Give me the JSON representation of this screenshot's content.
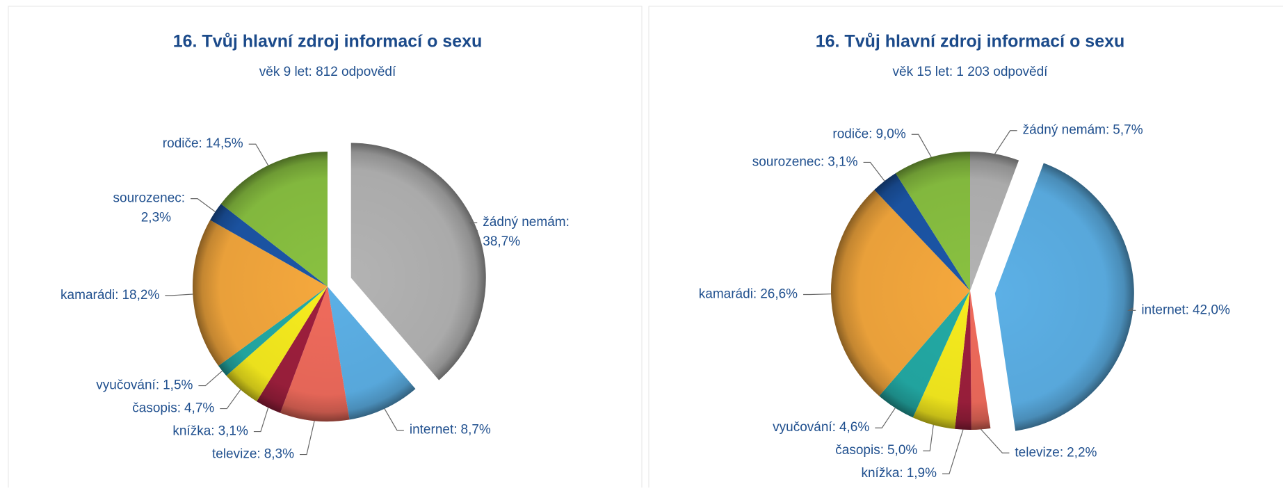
{
  "chart_data": [
    {
      "type": "pie",
      "title": "16. Tvůj hlavní zdroj informací o sexu",
      "subtitle": "věk 9 let: 812 odpovědí",
      "categories": [
        "žádný nemám:",
        "internet:",
        "televize:",
        "knížka:",
        "časopis:",
        "vyučování:",
        "kamarádi:",
        "sourozenec:",
        "rodiče:"
      ],
      "values": [
        38.7,
        8.7,
        8.3,
        3.1,
        4.7,
        1.5,
        18.2,
        2.3,
        14.5
      ],
      "value_labels": [
        "38,7%",
        "8,7%",
        "8,3%",
        "3,1%",
        "4,7%",
        "1,5%",
        "18,2%",
        "2,3%",
        "14,5%"
      ],
      "colors": [
        "#b3b3b3",
        "#5cb0e6",
        "#f06b5c",
        "#9e1f3d",
        "#f7ec1e",
        "#23aba6",
        "#f5a83d",
        "#1c56a7",
        "#89c141"
      ],
      "explode": 0
    },
    {
      "type": "pie",
      "title": "16. Tvůj hlavní zdroj informací o sexu",
      "subtitle": "věk 15 let: 1 203 odpovědí",
      "categories": [
        "žádný nemám:",
        "internet:",
        "televize:",
        "knížka:",
        "časopis:",
        "vyučování:",
        "kamarádi:",
        "sourozenec:",
        "rodiče:"
      ],
      "values": [
        5.7,
        42.0,
        2.2,
        1.9,
        5.0,
        4.6,
        26.6,
        3.1,
        9.0
      ],
      "value_labels": [
        "5,7%",
        "42,0%",
        "2,2%",
        "1,9%",
        "5,0%",
        "4,6%",
        "26,6%",
        "3,1%",
        "9,0%"
      ],
      "colors": [
        "#b3b3b3",
        "#5cb0e6",
        "#f06b5c",
        "#9e1f3d",
        "#f7ec1e",
        "#23aba6",
        "#f5a83d",
        "#1c56a7",
        "#89c141"
      ],
      "explode": 1
    }
  ]
}
